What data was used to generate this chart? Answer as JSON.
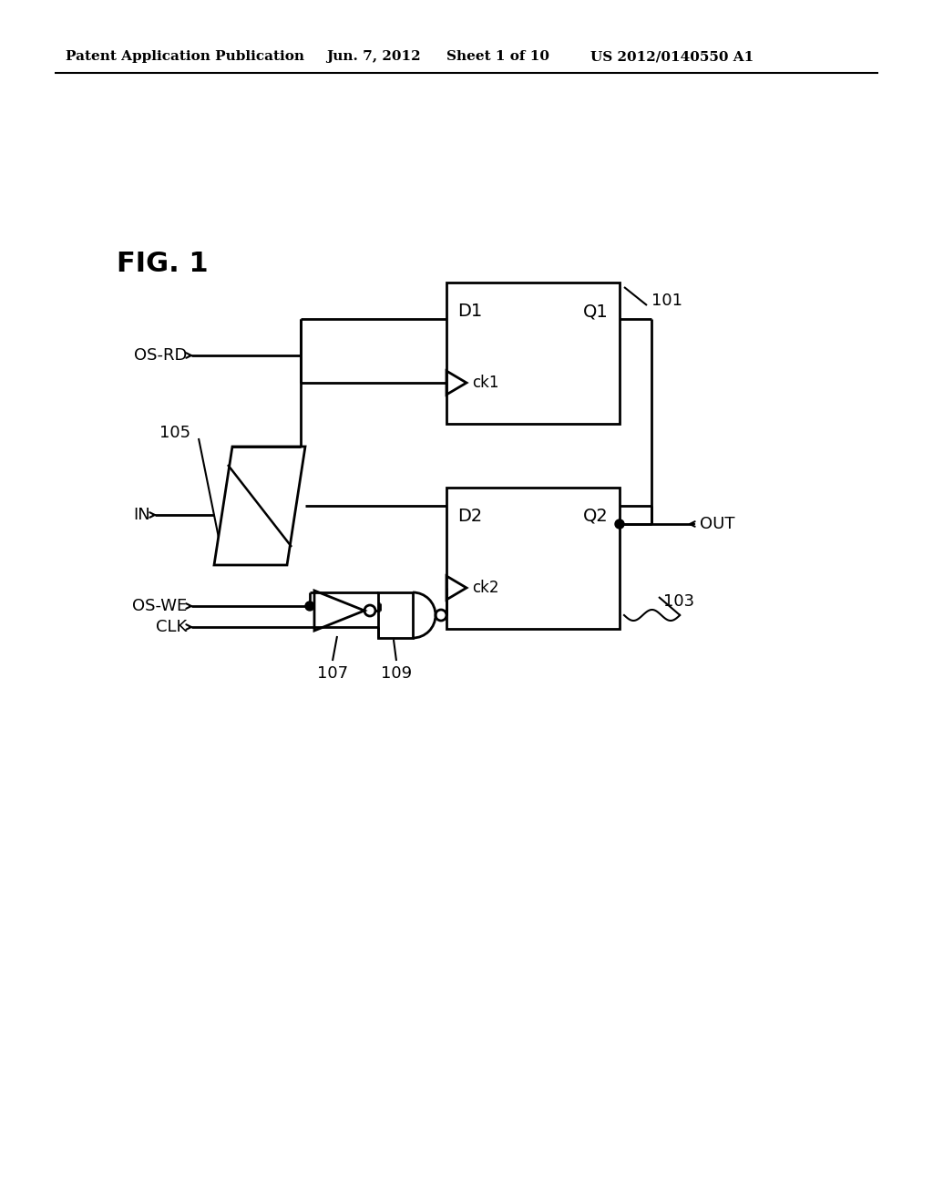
{
  "bg_color": "#ffffff",
  "header_text1": "Patent Application Publication",
  "header_text2": "Jun. 7, 2012",
  "header_text3": "Sheet 1 of 10",
  "header_text4": "US 2012/0140550 A1",
  "fig_label": "FIG. 1",
  "line_color": "#000000",
  "line_width": 2.0,
  "ff1_label_d": "D1",
  "ff1_label_q": "Q1",
  "ff1_label_ck": "ck1",
  "ff1_num": "101",
  "ff2_label_d": "D2",
  "ff2_label_q": "Q2",
  "ff2_label_ck": "ck2",
  "ff2_num": "103",
  "mux_num": "105",
  "inv_num": "107",
  "nand_num": "109",
  "sig_osrd": "OS-RD",
  "sig_in": "IN",
  "sig_oswe": "OS-WE",
  "sig_clk": "CLK",
  "sig_out": "OUT"
}
